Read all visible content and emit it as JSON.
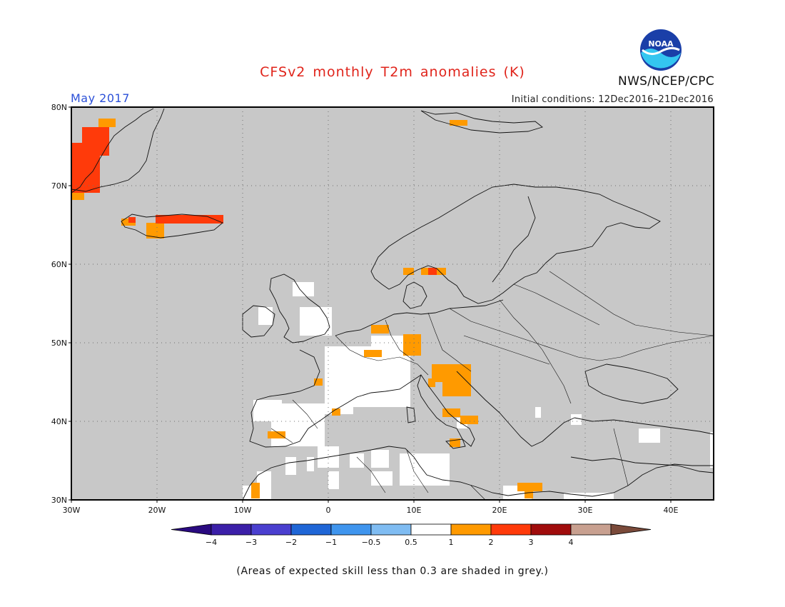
{
  "header": {
    "title": "CFSv2 monthly T2m anomalies (K)",
    "period": "May 2017",
    "initial_conditions": "Initial conditions: 12Dec2016–21Dec2016",
    "agency": "NWS/NCEP/CPC",
    "logo_text": "NOAA"
  },
  "map": {
    "region": "Europe",
    "lon_range": [
      -30,
      45
    ],
    "lat_range": [
      30,
      80
    ],
    "grid": true,
    "lat_ticks": [
      "30N",
      "40N",
      "50N",
      "60N",
      "70N",
      "80N"
    ],
    "lon_ticks": [
      "30W",
      "20W",
      "10W",
      "0",
      "10E",
      "20E",
      "30E",
      "40E"
    ],
    "background_color": "#c8c8c8"
  },
  "legend": {
    "bins": [
      {
        "label": "−4",
        "color": "#3b1fa8"
      },
      {
        "label": "−3",
        "color": "#4a3fcf"
      },
      {
        "label": "−2",
        "color": "#1f66d6"
      },
      {
        "label": "−1",
        "color": "#3f95ee"
      },
      {
        "label": "−0.5",
        "color": "#7fbcf2"
      },
      {
        "label": "0.5",
        "color": "#ffffff"
      },
      {
        "label": "1",
        "color": "#ff9a00"
      },
      {
        "label": "2",
        "color": "#ff3a0a"
      },
      {
        "label": "3",
        "color": "#a00c0c"
      },
      {
        "label": "4",
        "color": "#c8a090"
      }
    ],
    "end_low_color": "#2a0a80",
    "end_high_color": "#7a4a3a"
  },
  "footnote": "(Areas of expected skill less than 0.3 are shaded in grey.)"
}
